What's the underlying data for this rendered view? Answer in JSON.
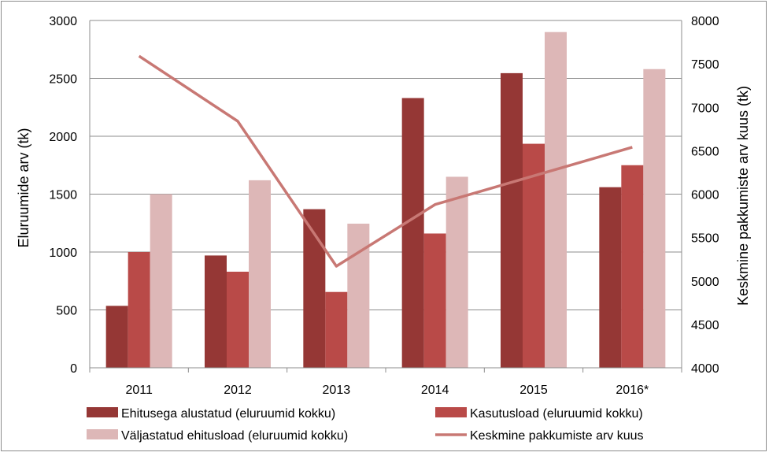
{
  "chart_data": {
    "type": "bar+line",
    "title": "",
    "categories": [
      "2011",
      "2012",
      "2013",
      "2014",
      "2015",
      "2016*"
    ],
    "y_left": {
      "label": "Eluruumide arv (tk)",
      "lim": [
        0,
        3000
      ],
      "ticks": [
        "0",
        "500",
        "1000",
        "1500",
        "2000",
        "2500",
        "3000"
      ]
    },
    "y_right": {
      "label": "Keskmine pakkumiste arv kuus (tk)",
      "lim": [
        4000,
        8000
      ],
      "ticks": [
        "4000",
        "4500",
        "5000",
        "5500",
        "6000",
        "6500",
        "7000",
        "7500",
        "8000"
      ]
    },
    "bar_series": [
      {
        "name": "Ehitusega alustatud (eluruumid kokku)",
        "color": "#953735",
        "values": [
          535,
          970,
          1370,
          2330,
          2545,
          1560
        ]
      },
      {
        "name": "Kasutusload (eluruumid kokku)",
        "color": "#b94a48",
        "values": [
          1000,
          830,
          655,
          1160,
          1935,
          1750
        ]
      },
      {
        "name": "Väljastatud ehitusload (eluruumid kokku)",
        "color": "#ddb7b7",
        "values": [
          1500,
          1620,
          1245,
          1650,
          2900,
          2580
        ]
      }
    ],
    "line_series": {
      "name": "Keskmine pakkumiste arv kuus",
      "color": "#c87874",
      "axis": "right",
      "values": [
        7590,
        6840,
        5170,
        5880,
        6210,
        6540
      ]
    },
    "grid": {
      "horizontal": true,
      "color": "#8c8c8c"
    },
    "legend_position": "bottom"
  }
}
